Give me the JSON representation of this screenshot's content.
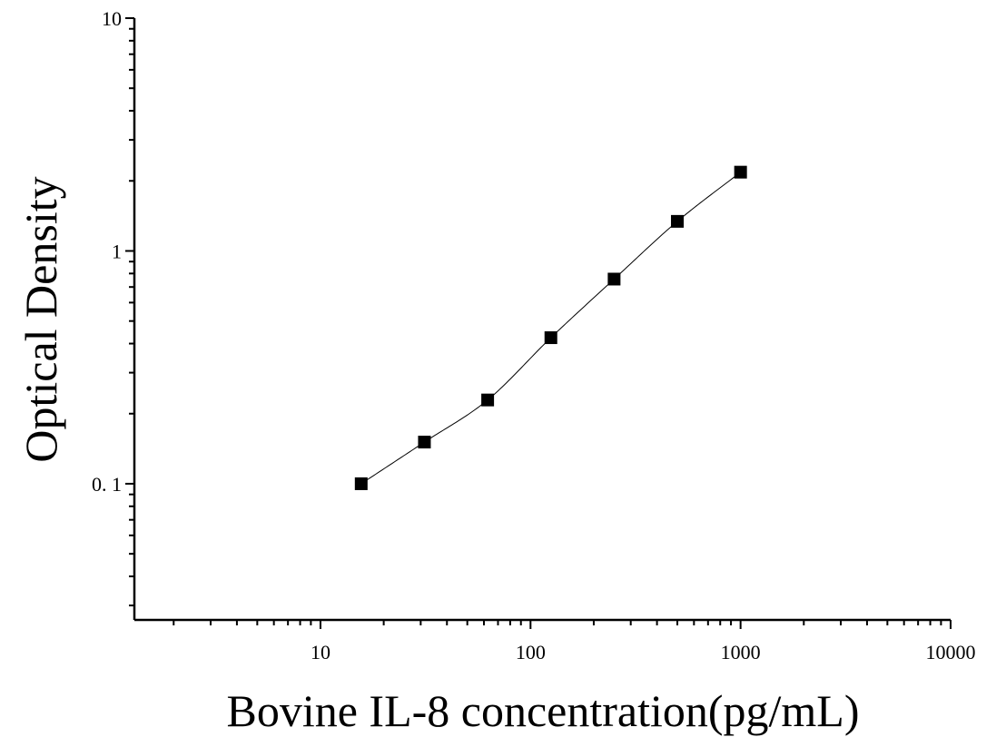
{
  "chart_data": {
    "type": "scatter",
    "x_scale": "log",
    "y_scale": "log",
    "xlim": [
      1.3,
      10000
    ],
    "ylim": [
      0.026,
      10
    ],
    "xlabel": "Bovine IL-8 concentration(pg/mL)",
    "ylabel": "Optical Density",
    "x_ticks": [
      10,
      100,
      1000,
      10000
    ],
    "x_tick_labels": [
      "10",
      "100",
      "1000",
      "10000"
    ],
    "y_ticks": [
      0.1,
      1,
      10
    ],
    "y_tick_labels": [
      "0. 1",
      "1",
      "10"
    ],
    "grid": false,
    "legend": "none",
    "series": [
      {
        "marker": "square",
        "color": "#000000",
        "x": [
          15.625,
          31.25,
          62.5,
          125,
          250,
          500,
          1000
        ],
        "y": [
          0.1,
          0.151,
          0.229,
          0.424,
          0.757,
          1.34,
          2.18
        ],
        "fit_curve": true
      }
    ]
  }
}
